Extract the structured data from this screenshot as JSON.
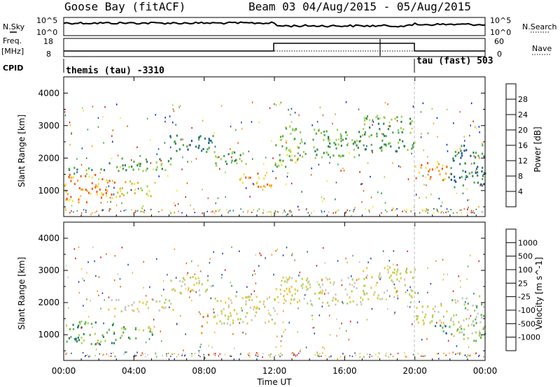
{
  "title_left": "Goose Bay (fitACF)",
  "title_right": "Beam 03 04/Aug/2015 - 05/Aug/2015",
  "top_panel": {
    "left_label": "N.Sky",
    "left_ticks": [
      "10^5",
      "10^0"
    ],
    "right_ticks": [
      "10^5",
      "10^0"
    ],
    "right_label": "N.Search"
  },
  "freq_panel": {
    "left_label_1": "Freq.",
    "left_label_2": "[MHz]",
    "left_ticks": [
      "18",
      "8"
    ],
    "right_ticks": [
      "60",
      "0"
    ],
    "right_label": "Nave"
  },
  "cpid": {
    "label": "CPID",
    "segments": [
      {
        "name": "themis (tau)  -3310",
        "start_h": 0,
        "end_h": 20
      },
      {
        "name": "tau (fast)  503",
        "start_h": 20,
        "end_h": 24
      }
    ]
  },
  "colors": {
    "power": [
      "#0022ee",
      "#1a4f9c",
      "#2a8050",
      "#4aa84a",
      "#9fd24a",
      "#f2e33c",
      "#f5a623",
      "#f05a1e",
      "#e0161b"
    ],
    "velocity": [
      "#e51a1a",
      "#f3640f",
      "#f79a1e",
      "#f2c542",
      "#c8c8c0",
      "#b4d24e",
      "#58b848",
      "#2a7c6a",
      "#1a4f9c",
      "#1d3fd0"
    ]
  },
  "chart_data": [
    {
      "type": "heatmap",
      "title": "",
      "xlabel": "",
      "ylabel": "Slant Range [km]",
      "yticks": [
        "1000",
        "2000",
        "3000",
        "4000"
      ],
      "ylim": [
        200,
        4500
      ],
      "xlim_hours": [
        0,
        24
      ],
      "xticks": [
        "00:00",
        "04:00",
        "08:00",
        "12:00",
        "16:00",
        "20:00",
        "00:00"
      ],
      "colorbar_label": "Power [dB]",
      "colorbar_ticks": [
        "28",
        "24",
        "20",
        "16",
        "12",
        "8",
        "4"
      ],
      "bands": [
        {
          "t0": 0.0,
          "t1": 3.0,
          "r0": 600,
          "r1": 1500,
          "level": 6
        },
        {
          "t0": 0.2,
          "t1": 2.6,
          "r0": 1500,
          "r1": 1700,
          "level": 3
        },
        {
          "t0": 3.0,
          "t1": 5.1,
          "r0": 800,
          "r1": 1300,
          "level": 5
        },
        {
          "t0": 2.5,
          "t1": 6.2,
          "r0": 1600,
          "r1": 2000,
          "level": 3
        },
        {
          "t0": 6.0,
          "t1": 8.5,
          "r0": 2100,
          "r1": 2700,
          "level": 2
        },
        {
          "t0": 8.5,
          "t1": 10.5,
          "r0": 1700,
          "r1": 2200,
          "level": 3
        },
        {
          "t0": 10.0,
          "t1": 12.0,
          "r0": 1100,
          "r1": 1600,
          "level": 6
        },
        {
          "t0": 12.0,
          "t1": 13.5,
          "r0": 1700,
          "r1": 3000,
          "level": 4
        },
        {
          "t0": 13.5,
          "t1": 17.0,
          "r0": 2000,
          "r1": 2900,
          "level": 3
        },
        {
          "t0": 17.0,
          "t1": 20.0,
          "r0": 2200,
          "r1": 3300,
          "level": 3
        },
        {
          "t0": 20.0,
          "t1": 22.0,
          "r0": 1300,
          "r1": 1900,
          "level": 6
        },
        {
          "t0": 22.0,
          "t1": 24.0,
          "r0": 1100,
          "r1": 2400,
          "level": 2
        }
      ]
    },
    {
      "type": "heatmap",
      "title": "",
      "xlabel": "Time UT",
      "ylabel": "Slant Range [km]",
      "yticks": [
        "1000",
        "2000",
        "3000",
        "4000"
      ],
      "ylim": [
        200,
        4500
      ],
      "xlim_hours": [
        0,
        24
      ],
      "xticks": [
        "00:00",
        "04:00",
        "08:00",
        "12:00",
        "16:00",
        "20:00",
        "00:00"
      ],
      "colorbar_label": "Velocity [m s^-1]",
      "colorbar_ticks": [
        "1000",
        "500",
        "100",
        "25",
        "-25",
        "-100",
        "-500",
        "-1000"
      ],
      "bands": [
        {
          "t0": 0.0,
          "t1": 3.0,
          "r0": 700,
          "r1": 1400,
          "level": 6
        },
        {
          "t0": 3.0,
          "t1": 5.1,
          "r0": 850,
          "r1": 1250,
          "level": 6
        },
        {
          "t0": 2.5,
          "t1": 6.2,
          "r0": 1700,
          "r1": 2100,
          "level": 4
        },
        {
          "t0": 6.0,
          "t1": 8.5,
          "r0": 2200,
          "r1": 2800,
          "level": 4
        },
        {
          "t0": 7.8,
          "t1": 8.2,
          "r0": 1000,
          "r1": 1600,
          "level": 2
        },
        {
          "t0": 8.5,
          "t1": 12.0,
          "r0": 1300,
          "r1": 2200,
          "level": 4
        },
        {
          "t0": 12.0,
          "t1": 17.0,
          "r0": 1900,
          "r1": 2800,
          "level": 4
        },
        {
          "t0": 17.0,
          "t1": 20.0,
          "r0": 2100,
          "r1": 3100,
          "level": 4
        },
        {
          "t0": 20.0,
          "t1": 22.0,
          "r0": 1300,
          "r1": 1900,
          "level": 4
        },
        {
          "t0": 21.0,
          "t1": 22.0,
          "r0": 1000,
          "r1": 1300,
          "level": 7
        },
        {
          "t0": 22.0,
          "t1": 24.0,
          "r0": 800,
          "r1": 2200,
          "level": 5
        }
      ]
    }
  ]
}
